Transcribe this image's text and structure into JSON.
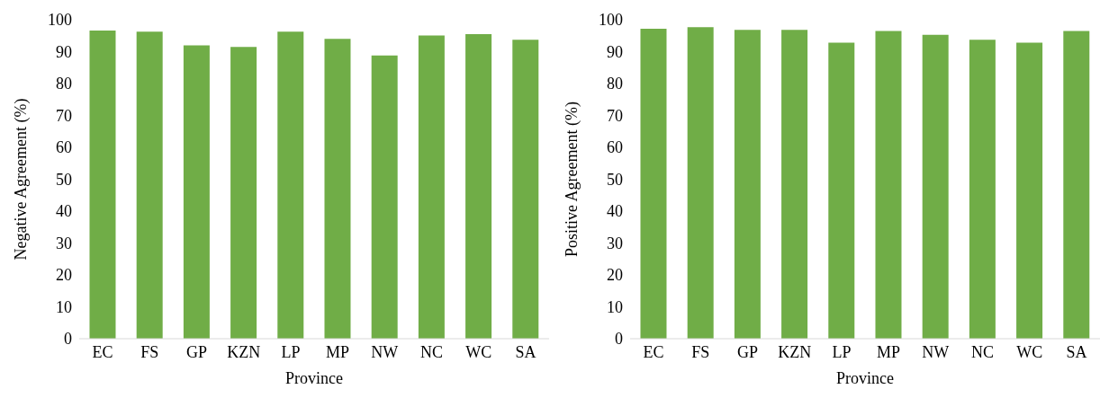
{
  "chart_data": [
    {
      "type": "bar",
      "categories": [
        "EC",
        "FS",
        "GP",
        "KZN",
        "LP",
        "MP",
        "NW",
        "NC",
        "WC",
        "SA"
      ],
      "values": [
        96.6,
        96.3,
        92.0,
        91.5,
        96.3,
        94.0,
        88.8,
        95.1,
        95.5,
        93.7
      ],
      "color": "#70ad47",
      "xlabel": "Province",
      "ylabel": "Negative Agreement (%)",
      "ylim": [
        0,
        100
      ],
      "yticks": [
        0,
        10,
        20,
        30,
        40,
        50,
        60,
        70,
        80,
        90,
        100
      ],
      "grid": false,
      "legend": false
    },
    {
      "type": "bar",
      "categories": [
        "EC",
        "FS",
        "GP",
        "KZN",
        "LP",
        "MP",
        "NW",
        "NC",
        "WC",
        "SA"
      ],
      "values": [
        97.2,
        97.7,
        96.8,
        96.8,
        92.8,
        96.5,
        95.3,
        93.7,
        92.8,
        96.5
      ],
      "color": "#70ad47",
      "xlabel": "Province",
      "ylabel": "Positive Agreement (%)",
      "ylim": [
        0,
        100
      ],
      "yticks": [
        0,
        10,
        20,
        30,
        40,
        50,
        60,
        70,
        80,
        90,
        100
      ],
      "grid": false,
      "legend": false
    }
  ]
}
